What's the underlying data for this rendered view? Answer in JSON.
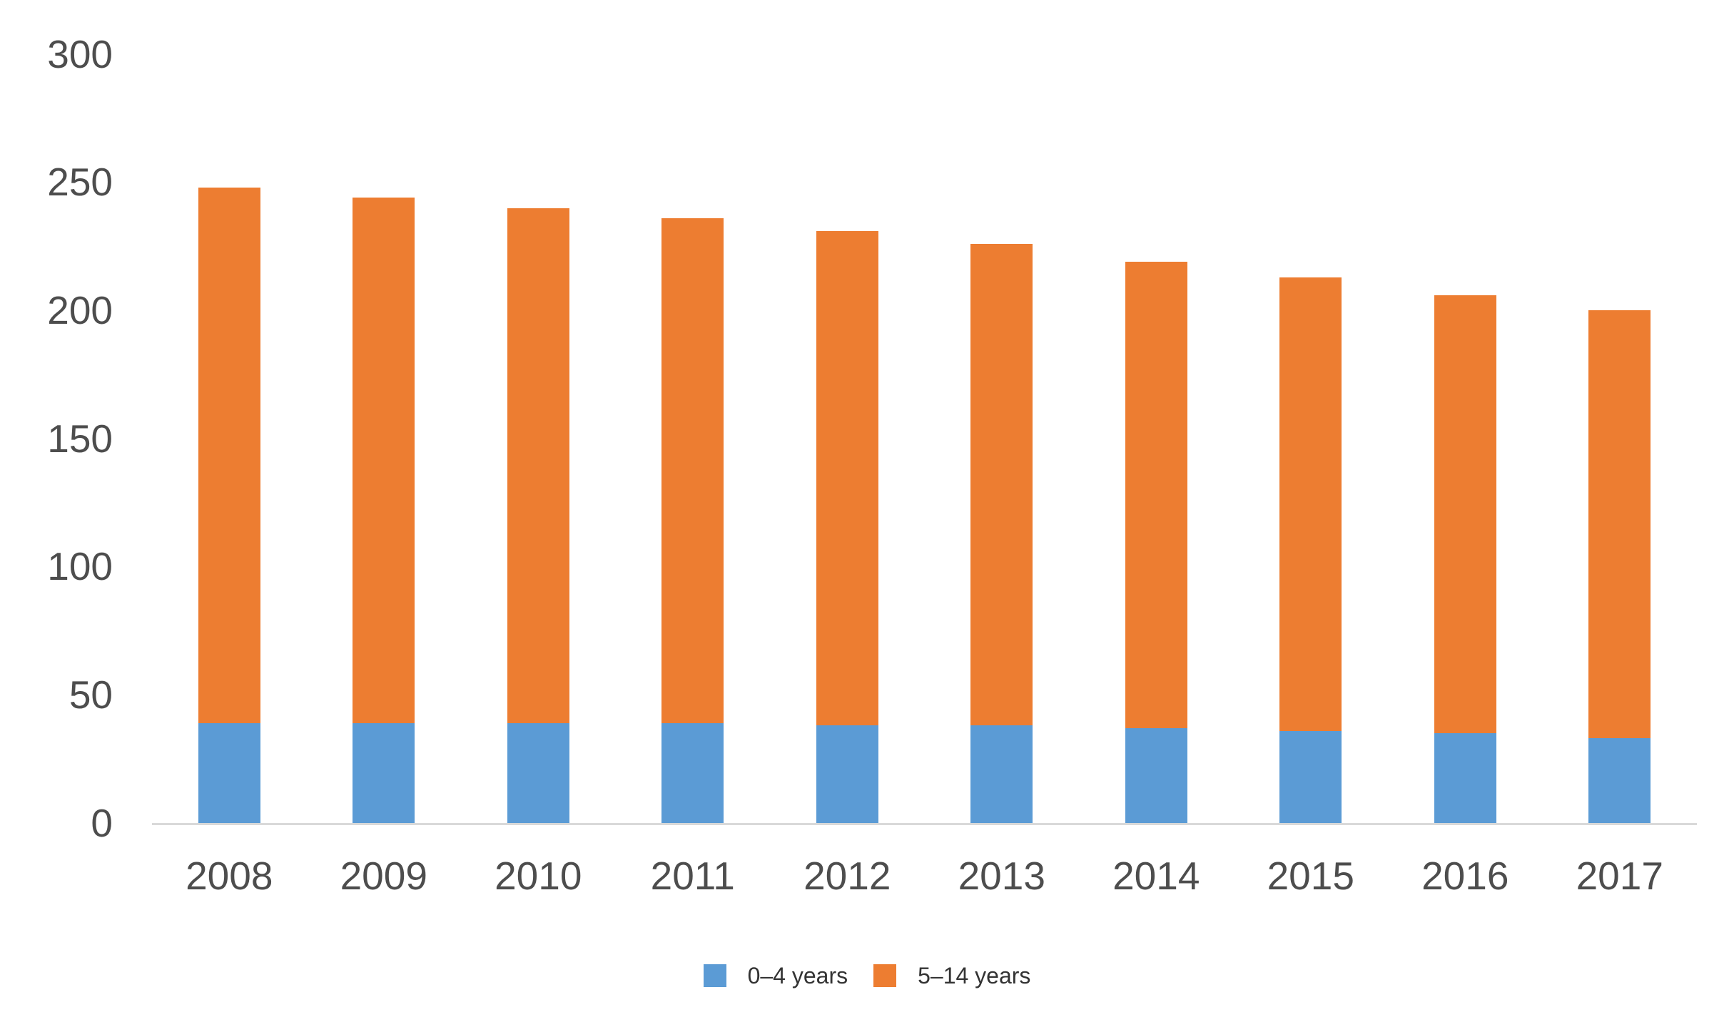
{
  "chart_data": {
    "type": "bar",
    "stacked": true,
    "title": "",
    "subtitle": "",
    "xlabel": "",
    "ylabel": "",
    "categories": [
      "2008",
      "2009",
      "2010",
      "2011",
      "2012",
      "2013",
      "2014",
      "2015",
      "2016",
      "2017"
    ],
    "series": [
      {
        "name": "0–4 years",
        "color": "#5B9BD5",
        "values": [
          39,
          39,
          39,
          39,
          38,
          38,
          37,
          36,
          35,
          33
        ]
      },
      {
        "name": "5–14 years",
        "color": "#ED7D31",
        "values": [
          209,
          205,
          201,
          197,
          193,
          188,
          182,
          177,
          171,
          167
        ]
      }
    ],
    "stack_totals": [
      248,
      244,
      240,
      236,
      231,
      226,
      219,
      213,
      206,
      200
    ],
    "ylim": [
      0,
      300
    ],
    "yticks": [
      0,
      50,
      100,
      150,
      200,
      250,
      300
    ],
    "grid": false,
    "legend_position": "bottom"
  },
  "colors": {
    "axis_line": "#D9D9D9",
    "axis_text": "#4D4D4D",
    "legend_text": "#333333",
    "background": "#FFFFFF"
  }
}
